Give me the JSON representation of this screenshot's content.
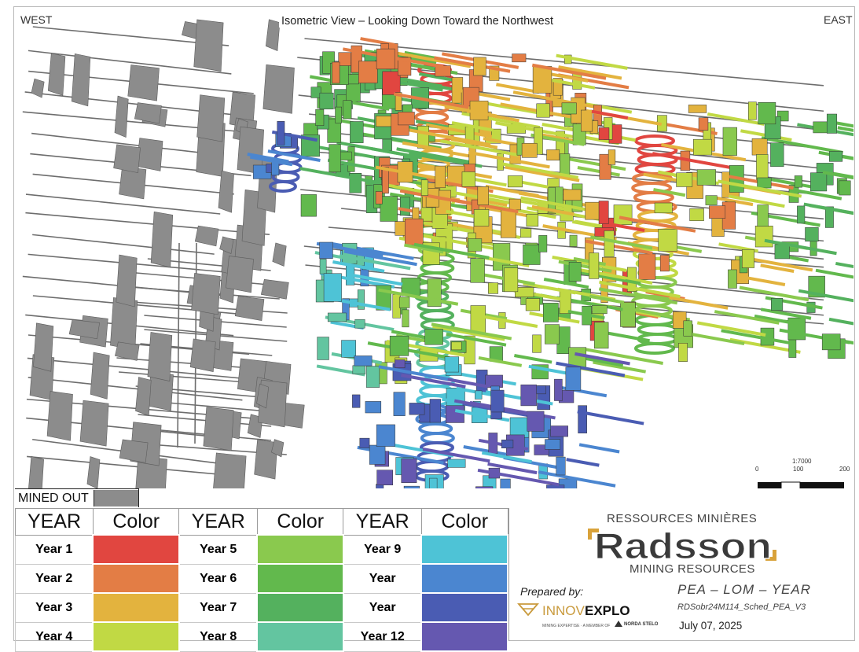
{
  "view": {
    "title": "Isometric View – Looking Down Toward the Northwest",
    "west_label": "WEST",
    "east_label": "EAST",
    "scale": {
      "ratio": "1:7000",
      "ticks": [
        "0",
        "100",
        "200"
      ]
    }
  },
  "mined_out": {
    "label": "MINED OUT",
    "color": "#8c8c8c"
  },
  "legend": {
    "year_header": "YEAR",
    "color_header": "Color",
    "rows": [
      [
        {
          "year": "Year 1",
          "color": "#e14640"
        },
        {
          "year": "Year 5",
          "color": "#8ac94e"
        },
        {
          "year": "Year 9",
          "color": "#4ec3d6"
        }
      ],
      [
        {
          "year": "Year 2",
          "color": "#e37d45"
        },
        {
          "year": "Year 6",
          "color": "#62b94d"
        },
        {
          "year": "Year",
          "color": "#4b86d0"
        }
      ],
      [
        {
          "year": "Year 3",
          "color": "#e3b33e"
        },
        {
          "year": "Year 7",
          "color": "#54b15e"
        },
        {
          "year": "Year",
          "color": "#4a5cb3"
        }
      ],
      [
        {
          "year": "Year 4",
          "color": "#c1d944"
        },
        {
          "year": "Year 8",
          "color": "#63c5a0"
        },
        {
          "year": "Year 12",
          "color": "#6558b0"
        }
      ]
    ]
  },
  "branding": {
    "company_fr": "RESSOURCES MINIÈRES",
    "company_name": "Radsson",
    "company_en": "MINING RESOURCES",
    "prepared_by": "Prepared by:",
    "consultant": "INNOVEXPLO",
    "consultant_prefix": "INNOV",
    "consultant_suffix": "EXPLO",
    "consultant_tagline": "MINING EXPERTISE · A MEMBER OF",
    "parent": "NORDA STELO",
    "study": "PEA – LOM – YEAR",
    "file": "RDSobr24M114_Sched_PEA_V3",
    "date": "July 07, 2025"
  }
}
